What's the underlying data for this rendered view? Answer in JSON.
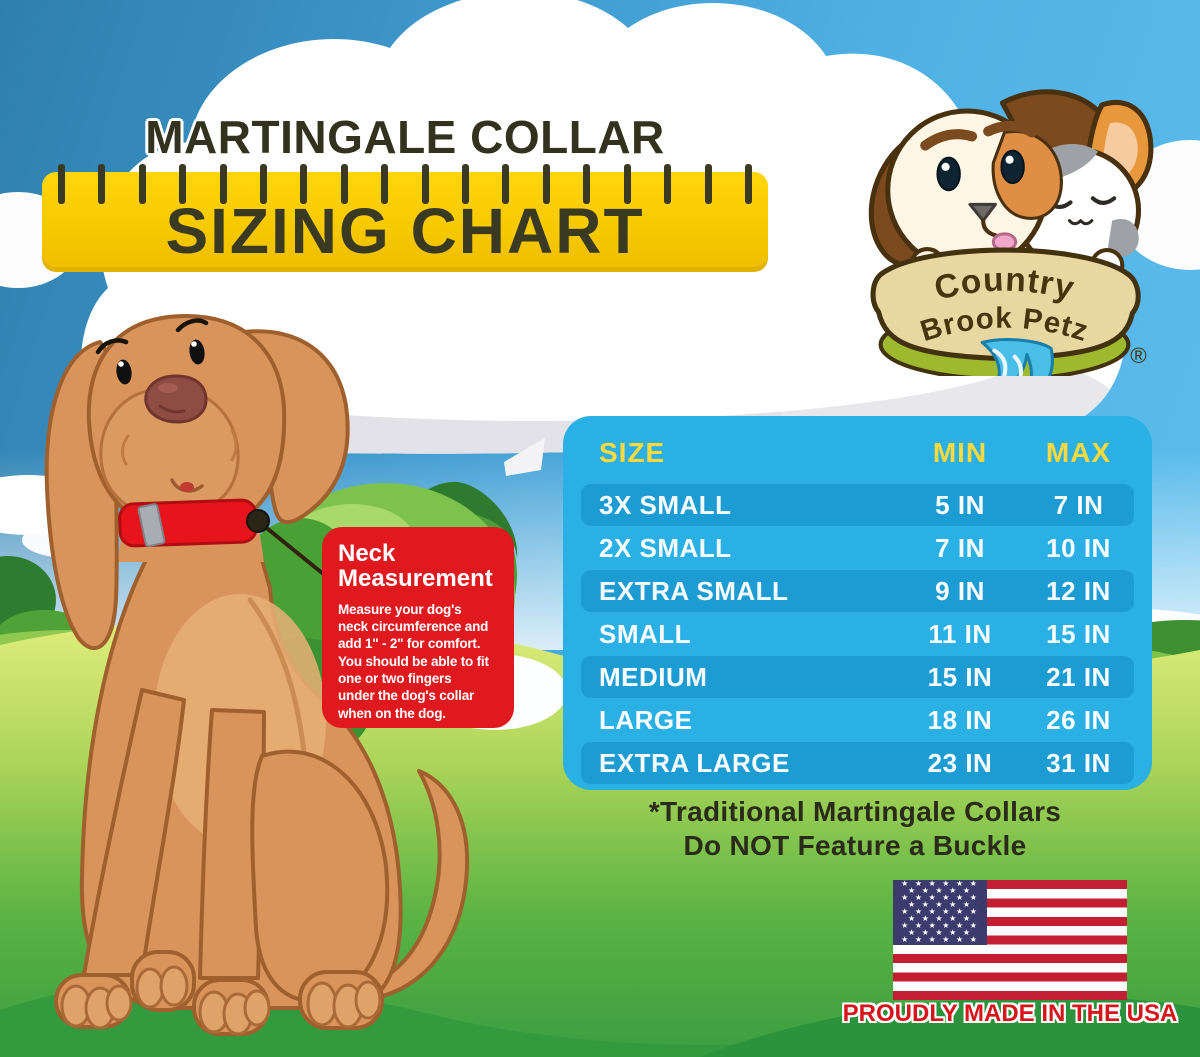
{
  "header": {
    "product_line": "MARTINGALE COLLAR",
    "chart_label": "SIZING CHART"
  },
  "logo": {
    "brand_arc_top": "Country",
    "brand_arc_bottom": "Brook Petz",
    "registered_mark": "®"
  },
  "chart_data": {
    "type": "table",
    "title": "Martingale Collar Sizing Chart",
    "columns": [
      "SIZE",
      "MIN",
      "MAX"
    ],
    "rows": [
      [
        "3X SMALL",
        "5 IN",
        "7 IN"
      ],
      [
        "2X SMALL",
        "7 IN",
        "10 IN"
      ],
      [
        "EXTRA SMALL",
        "9 IN",
        "12 IN"
      ],
      [
        "SMALL",
        "11 IN",
        "15 IN"
      ],
      [
        "MEDIUM",
        "15 IN",
        "21 IN"
      ],
      [
        "LARGE",
        "18 IN",
        "26 IN"
      ],
      [
        "EXTRA LARGE",
        "23 IN",
        "31 IN"
      ]
    ],
    "units": "inches (neck circumference)"
  },
  "callout": {
    "title": "Neck\nMeasurement",
    "body": "Measure your dog's\nneck circumference and\nadd 1\" - 2\" for comfort.\nYou should be able to fit\none or two fingers\nunder the dog's collar\nwhen on the dog."
  },
  "footnote": "*Traditional Martingale Collars\nDo NOT Feature a Buckle",
  "made_in_usa_label": "PROUDLY MADE IN THE USA",
  "colors": {
    "ruler_yellow": "#F6C800",
    "title_olive": "#32321E",
    "table_blue": "#2BB0E5",
    "table_stripe_blue": "#1C9CD3",
    "table_header_yellow": "#FFD93E",
    "callout_red": "#E0191F",
    "flag_red": "#C22032",
    "flag_blue": "#3C3B6E",
    "made_usa_red": "#D5161C",
    "sky_blue": "#4FB0E3",
    "grass_green": "#5BB343",
    "dog_coat": "#D8945A",
    "collar_red": "#E8141C"
  }
}
